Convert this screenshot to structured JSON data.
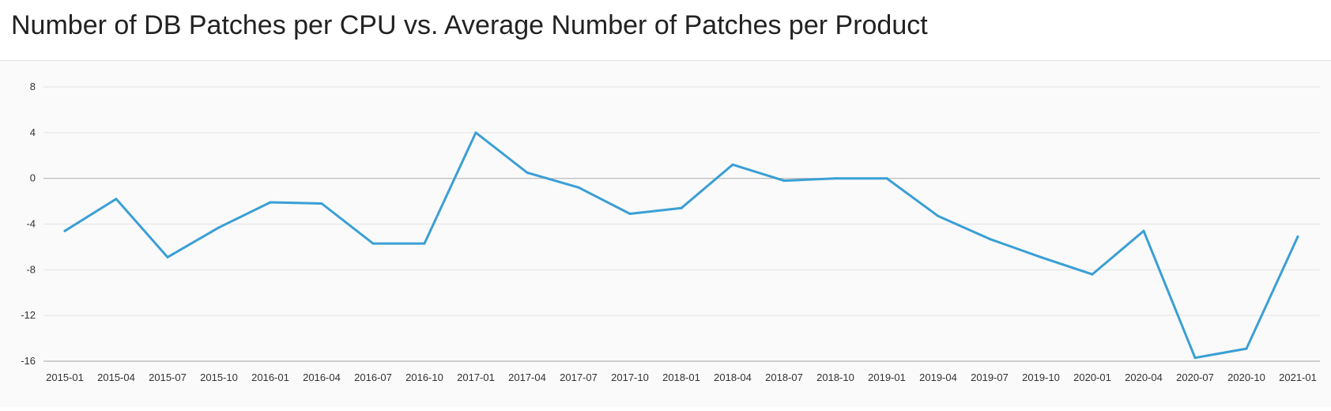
{
  "title": "Number of DB Patches per CPU vs. Average Number of Patches per Product",
  "colors": {
    "line": "#3b9fd5",
    "grid": "#e3e3e3",
    "zero_line": "#b5b5b5",
    "axis": "#888888"
  },
  "chart_data": {
    "type": "line",
    "title": "Number of DB Patches per CPU vs. Average Number of Patches per Product",
    "xlabel": "",
    "ylabel": "",
    "categories": [
      "2015-01",
      "2015-04",
      "2015-07",
      "2015-10",
      "2016-01",
      "2016-04",
      "2016-07",
      "2016-10",
      "2017-01",
      "2017-04",
      "2017-07",
      "2017-10",
      "2018-01",
      "2018-04",
      "2018-07",
      "2018-10",
      "2019-01",
      "2019-04",
      "2019-07",
      "2019-10",
      "2020-01",
      "2020-04",
      "2020-07",
      "2020-10",
      "2021-01"
    ],
    "series": [
      {
        "name": "",
        "values": [
          -4.6,
          -1.8,
          -6.9,
          -4.3,
          -2.1,
          -2.2,
          -5.7,
          -5.7,
          4.0,
          0.5,
          -0.8,
          -3.1,
          -2.6,
          1.2,
          -0.2,
          0.0,
          0.0,
          -3.3,
          -5.3,
          -6.9,
          -8.4,
          -4.6,
          -15.7,
          -14.9,
          -5.1
        ]
      }
    ],
    "ylim": [
      -16,
      8
    ],
    "yticks": [
      8,
      4,
      0,
      -4,
      -8,
      -12,
      -16
    ],
    "grid": true,
    "legend": "none"
  }
}
